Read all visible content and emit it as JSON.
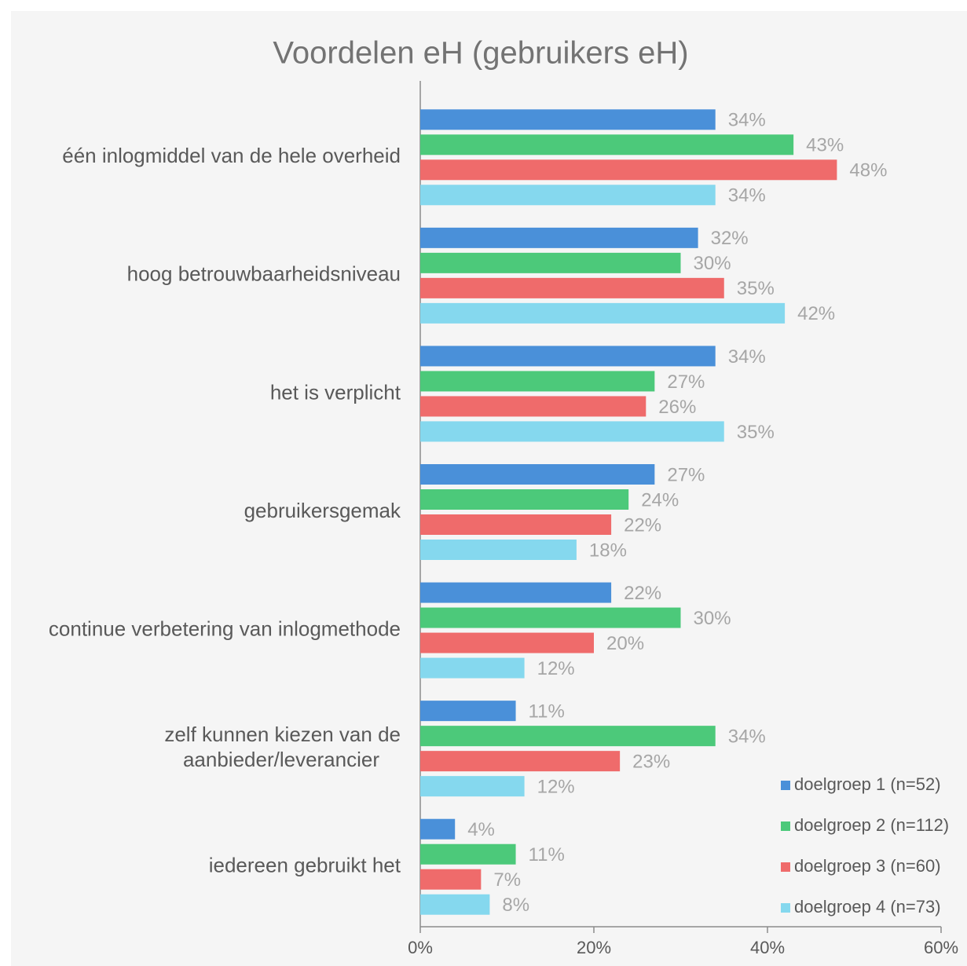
{
  "chart_data": {
    "type": "bar",
    "orientation": "horizontal",
    "title": "Voordelen eH (gebruikers eH)",
    "categories": [
      "één inlogmiddel van de hele overheid",
      "hoog betrouwbaarheidsniveau",
      "het is verplicht",
      "gebruikersgemak",
      "continue verbetering van inlogmethode",
      "zelf kunnen kiezen van de aanbieder/leverancier",
      "iedereen gebruikt het"
    ],
    "series": [
      {
        "name": "doelgroep 1 (n=52)",
        "color": "#4a90d9",
        "values": [
          34,
          32,
          34,
          27,
          22,
          11,
          4
        ],
        "value_labels": [
          "34%",
          "32%",
          "34%",
          "27%",
          "22%",
          "11%",
          "4%"
        ]
      },
      {
        "name": "doelgroep 2 (n=112)",
        "color": "#4cc97a",
        "values": [
          43,
          30,
          27,
          24,
          30,
          34,
          11
        ],
        "value_labels": [
          "43%",
          "30%",
          "27%",
          "24%",
          "30%",
          "34%",
          "11%"
        ]
      },
      {
        "name": "doelgroep 3 (n=60)",
        "color": "#ef6b6b",
        "values": [
          48,
          35,
          26,
          22,
          20,
          23,
          7
        ],
        "value_labels": [
          "48%",
          "35%",
          "26%",
          "22%",
          "20%",
          "23%",
          "7%"
        ]
      },
      {
        "name": "doelgroep 4 (n=73)",
        "color": "#85d8ee",
        "values": [
          34,
          42,
          35,
          18,
          12,
          12,
          8
        ],
        "value_labels": [
          "34%",
          "42%",
          "35%",
          "18%",
          "12%",
          "12%",
          "8%"
        ]
      }
    ],
    "xlim": [
      0,
      60
    ],
    "xticks": [
      {
        "value": 0,
        "label": "0%"
      },
      {
        "value": 20,
        "label": "20%"
      },
      {
        "value": 40,
        "label": "40%"
      },
      {
        "value": 60,
        "label": "60%"
      }
    ],
    "grid": false,
    "legend": "lower right"
  }
}
